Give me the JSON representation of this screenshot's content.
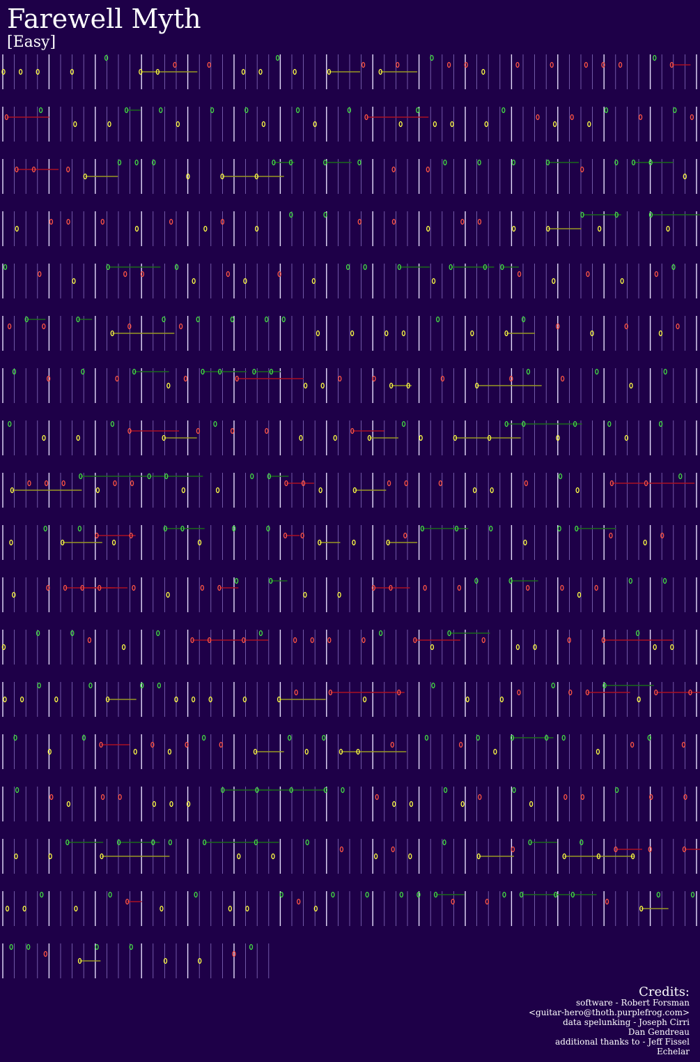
{
  "header": {
    "title": "Farewell Myth",
    "difficulty": "[Easy]"
  },
  "credits": {
    "heading": "Credits:",
    "lines": [
      "software - Robert Forsman",
      "<guitar-hero@thoth.purplefrog.com>",
      "data spelunking - Joseph Cirri",
      "Dan Gendreau",
      "additional thanks to - Jeff Fissel",
      "Echelar"
    ]
  }
}
